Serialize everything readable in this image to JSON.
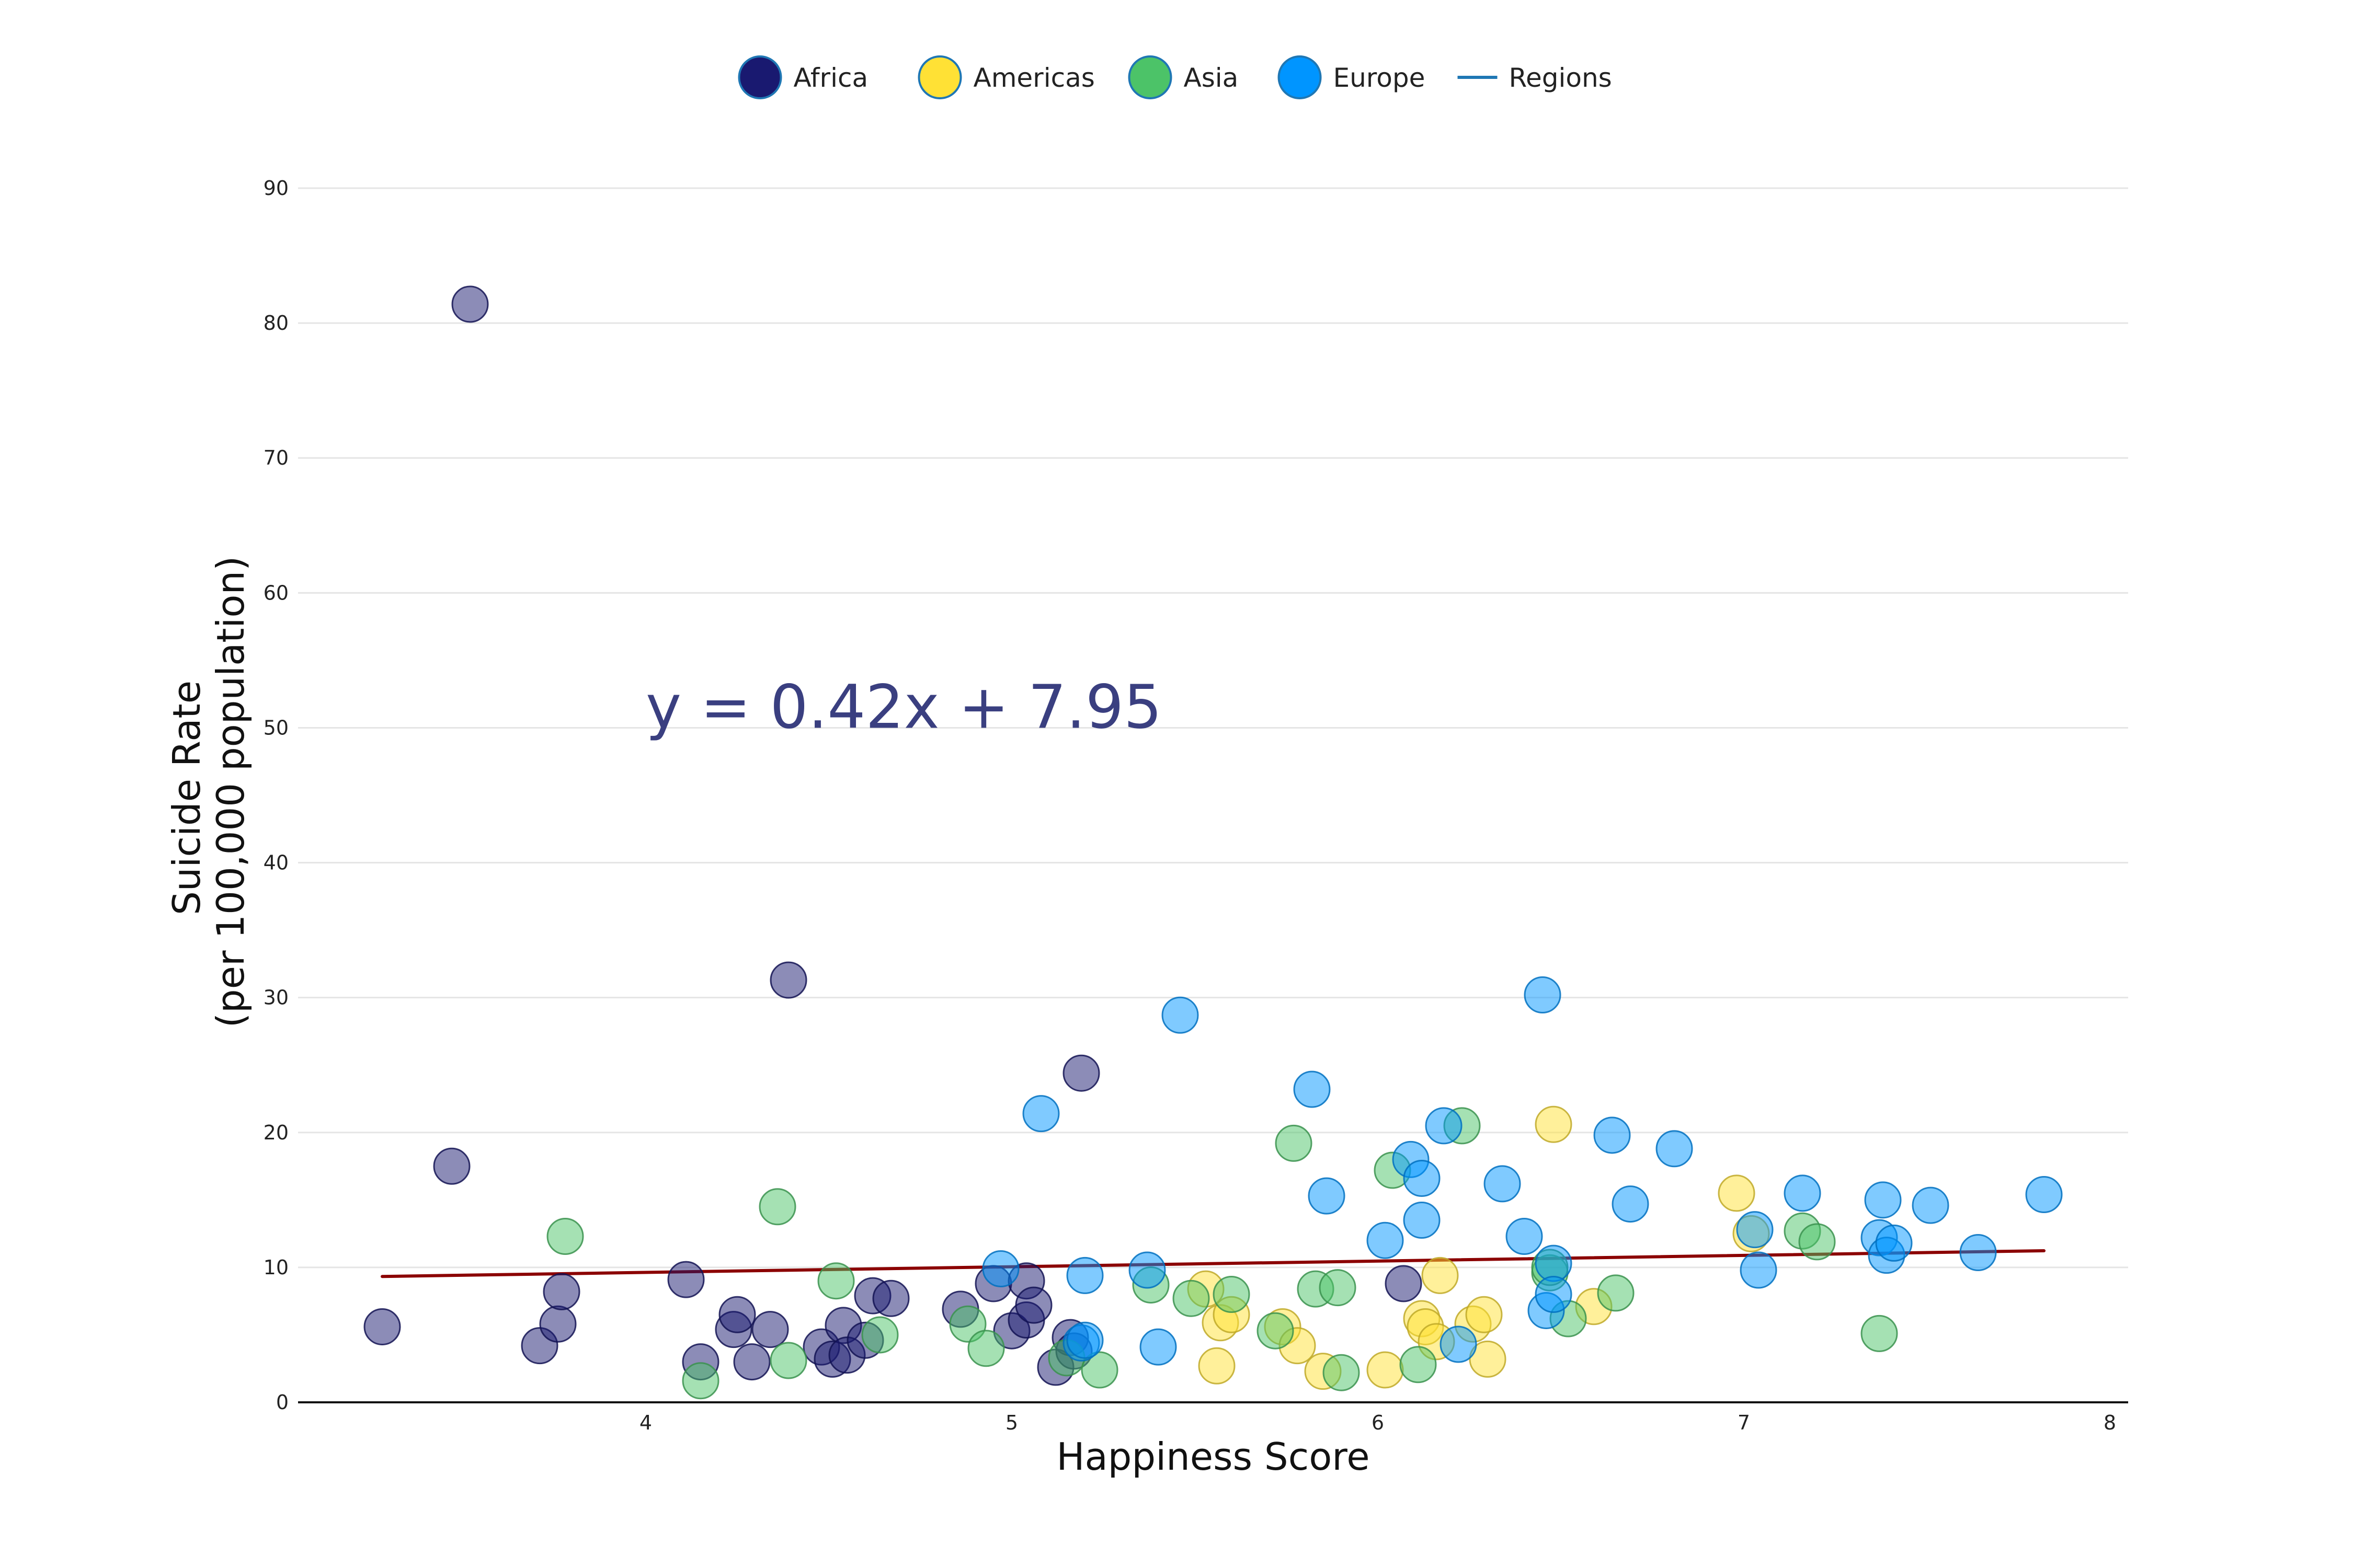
{
  "chart_data": {
    "type": "scatter",
    "title": "",
    "xlabel": "Happiness Score",
    "ylabel_lines": [
      "Suicide Rate",
      "(per 100,000 population)"
    ],
    "xlim": [
      3.05,
      8.05
    ],
    "ylim": [
      0,
      90
    ],
    "xticks": [
      4,
      5,
      6,
      7,
      8
    ],
    "yticks": [
      0,
      10,
      20,
      30,
      40,
      50,
      60,
      70,
      80,
      90
    ],
    "grid": "horizontal",
    "legend_position": "top-center",
    "legend": [
      {
        "label": "Africa",
        "kind": "marker",
        "color": "#191970"
      },
      {
        "label": "Americas",
        "kind": "marker",
        "color": "#ffe135"
      },
      {
        "label": "Asia",
        "kind": "marker",
        "color": "#4cc368"
      },
      {
        "label": "Europe",
        "kind": "marker",
        "color": "#0095ff"
      },
      {
        "label": "Regions",
        "kind": "line",
        "color": "#1f77b4"
      }
    ],
    "equation": {
      "text": "y = 0.42x + 7.95",
      "color": "#3a3f80"
    },
    "trendline": {
      "slope": 0.42,
      "intercept": 7.95,
      "x_range": [
        3.28,
        7.82
      ],
      "color": "#8b0000"
    },
    "series": [
      {
        "name": "Africa",
        "color": "#191970",
        "points": [
          [
            3.28,
            5.6
          ],
          [
            3.47,
            17.5
          ],
          [
            3.52,
            81.4
          ],
          [
            3.71,
            4.2
          ],
          [
            3.76,
            5.8
          ],
          [
            3.77,
            8.2
          ],
          [
            4.11,
            9.1
          ],
          [
            4.15,
            3.0
          ],
          [
            4.24,
            5.4
          ],
          [
            4.25,
            6.5
          ],
          [
            4.29,
            3.0
          ],
          [
            4.34,
            5.4
          ],
          [
            4.39,
            31.3
          ],
          [
            4.48,
            4.1
          ],
          [
            4.51,
            3.2
          ],
          [
            4.54,
            5.7
          ],
          [
            4.55,
            3.5
          ],
          [
            4.6,
            4.6
          ],
          [
            4.62,
            7.9
          ],
          [
            4.67,
            7.7
          ],
          [
            4.86,
            6.9
          ],
          [
            4.95,
            8.8
          ],
          [
            5.0,
            5.3
          ],
          [
            5.04,
            6.1
          ],
          [
            5.04,
            9.0
          ],
          [
            5.06,
            7.2
          ],
          [
            5.12,
            2.6
          ],
          [
            5.16,
            4.8
          ],
          [
            5.17,
            3.8
          ],
          [
            5.19,
            24.4
          ],
          [
            6.07,
            8.8
          ]
        ]
      },
      {
        "name": "Americas",
        "color": "#ffe135",
        "points": [
          [
            5.53,
            8.4
          ],
          [
            5.56,
            2.7
          ],
          [
            5.57,
            5.9
          ],
          [
            5.6,
            6.5
          ],
          [
            5.74,
            5.6
          ],
          [
            5.78,
            4.2
          ],
          [
            5.85,
            2.3
          ],
          [
            6.02,
            2.4
          ],
          [
            6.12,
            6.2
          ],
          [
            6.13,
            5.6
          ],
          [
            6.16,
            4.5
          ],
          [
            6.17,
            9.4
          ],
          [
            6.26,
            5.8
          ],
          [
            6.29,
            6.5
          ],
          [
            6.3,
            3.2
          ],
          [
            6.48,
            20.6
          ],
          [
            6.59,
            7.1
          ],
          [
            6.98,
            15.5
          ],
          [
            7.02,
            12.5
          ]
        ]
      },
      {
        "name": "Asia",
        "color": "#4cc368",
        "points": [
          [
            3.78,
            12.3
          ],
          [
            4.15,
            1.6
          ],
          [
            4.36,
            14.5
          ],
          [
            4.39,
            3.1
          ],
          [
            4.52,
            9.0
          ],
          [
            4.64,
            5.0
          ],
          [
            4.88,
            5.8
          ],
          [
            4.93,
            4.0
          ],
          [
            5.15,
            3.3
          ],
          [
            5.24,
            2.4
          ],
          [
            5.38,
            8.7
          ],
          [
            5.49,
            7.7
          ],
          [
            5.6,
            8.0
          ],
          [
            5.72,
            5.3
          ],
          [
            5.77,
            19.2
          ],
          [
            5.83,
            8.4
          ],
          [
            5.89,
            8.5
          ],
          [
            5.9,
            2.2
          ],
          [
            6.04,
            17.2
          ],
          [
            6.11,
            2.8
          ],
          [
            6.23,
            20.5
          ],
          [
            6.47,
            9.6
          ],
          [
            6.47,
            10.0
          ],
          [
            6.52,
            6.2
          ],
          [
            6.65,
            8.1
          ],
          [
            7.16,
            12.7
          ],
          [
            7.2,
            11.9
          ],
          [
            7.37,
            5.1
          ]
        ]
      },
      {
        "name": "Europe",
        "color": "#0095ff",
        "points": [
          [
            4.97,
            9.9
          ],
          [
            5.08,
            21.4
          ],
          [
            5.19,
            4.4
          ],
          [
            5.2,
            4.6
          ],
          [
            5.2,
            9.4
          ],
          [
            5.37,
            9.8
          ],
          [
            5.4,
            4.1
          ],
          [
            5.46,
            28.7
          ],
          [
            5.82,
            23.2
          ],
          [
            5.86,
            15.3
          ],
          [
            6.02,
            12.0
          ],
          [
            6.09,
            18.0
          ],
          [
            6.12,
            16.6
          ],
          [
            6.12,
            13.5
          ],
          [
            6.18,
            20.5
          ],
          [
            6.22,
            4.3
          ],
          [
            6.34,
            16.2
          ],
          [
            6.4,
            12.3
          ],
          [
            6.45,
            30.2
          ],
          [
            6.46,
            6.8
          ],
          [
            6.48,
            10.3
          ],
          [
            6.48,
            8.0
          ],
          [
            6.64,
            19.8
          ],
          [
            6.69,
            14.7
          ],
          [
            6.81,
            18.8
          ],
          [
            7.03,
            12.8
          ],
          [
            7.04,
            9.8
          ],
          [
            7.16,
            15.5
          ],
          [
            7.37,
            12.2
          ],
          [
            7.38,
            15.0
          ],
          [
            7.39,
            10.9
          ],
          [
            7.41,
            11.8
          ],
          [
            7.51,
            14.6
          ],
          [
            7.64,
            11.1
          ],
          [
            7.82,
            15.4
          ]
        ]
      }
    ]
  }
}
